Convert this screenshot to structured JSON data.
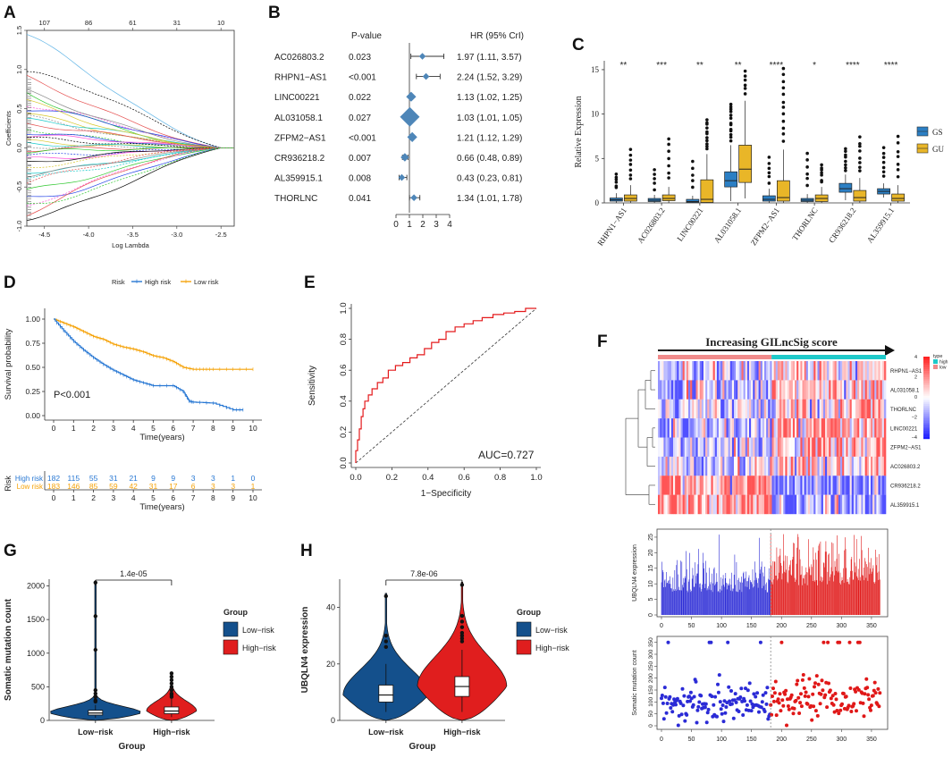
{
  "figure_label": "Multi-panel figure: GILncSig prognostic signature analysis",
  "panels": {
    "A": {
      "label": "A"
    },
    "B": {
      "label": "B"
    },
    "C": {
      "label": "C"
    },
    "D": {
      "label": "D"
    },
    "E": {
      "label": "E"
    },
    "F": {
      "label": "F"
    },
    "G": {
      "label": "G"
    },
    "H": {
      "label": "H"
    }
  },
  "chart_data": [
    {
      "id": "A",
      "type": "line",
      "xlabel": "Log Lambda",
      "ylabel": "Coefficients",
      "xlim": [
        -4.7,
        -2.35
      ],
      "ylim": [
        -1.0,
        1.5
      ],
      "x_ticks": [
        "-4.5",
        "-4.0",
        "-3.5",
        "-3.0",
        "-2.5"
      ],
      "x_tick_values": [
        -4.5,
        -4.0,
        -3.5,
        -3.0,
        -2.5
      ],
      "y_ticks": [
        "-1.0",
        "-0.5",
        "0.0",
        "0.5",
        "1.0",
        "1.5"
      ],
      "y_tick_values": [
        -1.0,
        -0.5,
        0.0,
        0.5,
        1.0,
        1.5
      ],
      "top_ticks": [
        "107",
        "86",
        "61",
        "31",
        "10"
      ],
      "top_tick_values": [
        -4.5,
        -4.0,
        -3.5,
        -3.0,
        -2.5
      ],
      "converge_x": -2.5,
      "paths": [
        {
          "color": "#5fb4e6",
          "start": 1.45
        },
        {
          "color": "#000000",
          "start": 0.95
        },
        {
          "color": "#e54b4b",
          "start": 0.9
        },
        {
          "color": "#2ec72e",
          "start": 0.7
        },
        {
          "color": "#ff4fd8",
          "start": 0.55
        },
        {
          "color": "#1f3fe6",
          "start": 0.5
        },
        {
          "color": "#d6c629",
          "start": 0.45
        },
        {
          "color": "#888888",
          "start": 0.4
        },
        {
          "color": "#18c9c9",
          "start": 0.35
        },
        {
          "color": "#e54b4b",
          "start": 0.3
        },
        {
          "color": "#2ec72e",
          "start": 0.25
        },
        {
          "color": "#1f3fe6",
          "start": 0.2
        },
        {
          "color": "#ff4fd8",
          "start": 0.15
        },
        {
          "color": "#000000",
          "start": 0.12
        },
        {
          "color": "#d6c629",
          "start": 0.08
        },
        {
          "color": "#18c9c9",
          "start": 0.05
        },
        {
          "color": "#888888",
          "start": 0.02
        },
        {
          "color": "#e54b4b",
          "start": -0.02
        },
        {
          "color": "#2ec72e",
          "start": -0.05
        },
        {
          "color": "#1f3fe6",
          "start": -0.1
        },
        {
          "color": "#ff4fd8",
          "start": -0.15
        },
        {
          "color": "#000000",
          "start": -0.2
        },
        {
          "color": "#d6c629",
          "start": -0.25
        },
        {
          "color": "#18c9c9",
          "start": -0.3
        },
        {
          "color": "#888888",
          "start": -0.35
        },
        {
          "color": "#e54b4b",
          "start": -0.45
        },
        {
          "color": "#2ec72e",
          "start": -0.55
        },
        {
          "color": "#1f3fe6",
          "start": -0.65
        },
        {
          "color": "#ff4fd8",
          "start": -0.75
        },
        {
          "color": "#e54b4b",
          "start": -0.85
        },
        {
          "color": "#000000",
          "start": -0.9
        },
        {
          "color": "#18c9c9",
          "start": -0.38
        },
        {
          "color": "#d6c629",
          "start": 0.6
        },
        {
          "color": "#888888",
          "start": 0.72
        },
        {
          "color": "#2ec72e",
          "start": -0.72
        }
      ]
    },
    {
      "id": "B",
      "type": "forest",
      "col_pvalue": "P-value",
      "col_hr": "HR (95% CrI)",
      "x_ticks": [
        "0",
        "1",
        "2",
        "3",
        "4"
      ],
      "x_tick_values": [
        0,
        1,
        2,
        3,
        4
      ],
      "reference_line": 1,
      "rows": [
        {
          "gene": "AC026803.2",
          "p": "0.023",
          "hr_text": "1.97 (1.11, 3.57)",
          "hr": 1.97,
          "lo": 1.11,
          "hi": 3.57,
          "size": 1
        },
        {
          "gene": "RHPN1−AS1",
          "p": "<0.001",
          "hr_text": "2.24 (1.52, 3.29)",
          "hr": 2.24,
          "lo": 1.52,
          "hi": 3.29,
          "size": 1
        },
        {
          "gene": "LINC00221",
          "p": "0.022",
          "hr_text": "1.13 (1.02, 1.25)",
          "hr": 1.13,
          "lo": 1.02,
          "hi": 1.25,
          "size": 2
        },
        {
          "gene": "AL031058.1",
          "p": "0.027",
          "hr_text": "1.03 (1.01, 1.05)",
          "hr": 1.03,
          "lo": 1.01,
          "hi": 1.05,
          "size": 5
        },
        {
          "gene": "ZFPM2−AS1",
          "p": "<0.001",
          "hr_text": "1.21 (1.12, 1.29)",
          "hr": 1.21,
          "lo": 1.12,
          "hi": 1.29,
          "size": 2
        },
        {
          "gene": "CR936218.2",
          "p": "0.007",
          "hr_text": "0.66 (0.48, 0.89)",
          "hr": 0.66,
          "lo": 0.48,
          "hi": 0.89,
          "size": 1.5
        },
        {
          "gene": "AL359915.1",
          "p": "0.008",
          "hr_text": "0.43 (0.23, 0.81)",
          "hr": 0.43,
          "lo": 0.23,
          "hi": 0.81,
          "size": 1
        },
        {
          "gene": "THORLNC",
          "p": "0.041",
          "hr_text": "1.34 (1.01, 1.78)",
          "hr": 1.34,
          "lo": 1.01,
          "hi": 1.78,
          "size": 1
        }
      ]
    },
    {
      "id": "C",
      "type": "box",
      "ylabel": "Relative Expression",
      "ylim": [
        0,
        16
      ],
      "y_ticks": [
        "0",
        "5",
        "10",
        "15"
      ],
      "y_tick_values": [
        0,
        5,
        10,
        15
      ],
      "legend": [
        {
          "name": "GS",
          "color": "#2b7fc4"
        },
        {
          "name": "GU",
          "color": "#e9b628"
        }
      ],
      "categories": [
        "RHPN1−AS1",
        "AC026803.2",
        "LINC00221",
        "AL031058.1",
        "ZFPM2−AS1",
        "THORLNC",
        "CR936218.2",
        "AL359915.1"
      ],
      "significance": [
        "**",
        "***",
        "**",
        "**",
        "****",
        "*",
        "****",
        "****"
      ],
      "GS": [
        [
          0,
          0.2,
          0.35,
          0.55,
          1.1
        ],
        [
          0,
          0.15,
          0.3,
          0.5,
          0.9
        ],
        [
          0,
          0.05,
          0.15,
          0.4,
          0.8
        ],
        [
          0.2,
          1.8,
          2.5,
          3.5,
          6.5
        ],
        [
          0,
          0.2,
          0.4,
          0.8,
          1.6
        ],
        [
          0,
          0.15,
          0.3,
          0.5,
          1.0
        ],
        [
          0.3,
          1.2,
          1.6,
          2.2,
          3.2
        ],
        [
          0.6,
          1.0,
          1.3,
          1.6,
          2.2
        ]
      ],
      "GU": [
        [
          0,
          0.2,
          0.5,
          0.9,
          2.0
        ],
        [
          0,
          0.25,
          0.5,
          0.9,
          1.8
        ],
        [
          0,
          0.05,
          0.4,
          2.6,
          5.5
        ],
        [
          0.5,
          2.3,
          3.8,
          6.5,
          11.5
        ],
        [
          0,
          0.2,
          0.6,
          2.5,
          6.0
        ],
        [
          0,
          0.15,
          0.5,
          0.9,
          1.8
        ],
        [
          0,
          0.2,
          0.6,
          1.4,
          2.8
        ],
        [
          0,
          0.2,
          0.5,
          1.0,
          2.0
        ]
      ]
    },
    {
      "id": "D",
      "type": "survival",
      "legend_title": "Risk",
      "legend": [
        {
          "name": "High risk",
          "color": "#2777d3"
        },
        {
          "name": "Low risk",
          "color": "#f5a30a"
        }
      ],
      "xlabel": "Time(years)",
      "ylabel": "Survival probability",
      "xlim": [
        0,
        10
      ],
      "ylim": [
        0,
        1
      ],
      "x_ticks": [
        "0",
        "1",
        "2",
        "3",
        "4",
        "5",
        "6",
        "7",
        "8",
        "9",
        "10"
      ],
      "x_tick_values": [
        0,
        1,
        2,
        3,
        4,
        5,
        6,
        7,
        8,
        9,
        10
      ],
      "y_ticks": [
        "0.00",
        "0.25",
        "0.50",
        "0.75",
        "1.00"
      ],
      "y_tick_values": [
        0,
        0.25,
        0.5,
        0.75,
        1
      ],
      "pvalue": "P<0.001",
      "curves": {
        "high": {
          "t": [
            0,
            0.5,
            1,
            1.5,
            2,
            2.5,
            3,
            3.5,
            4,
            4.5,
            5,
            6,
            6.5,
            6.8,
            7,
            8,
            9,
            9.5
          ],
          "s": [
            1,
            0.88,
            0.77,
            0.68,
            0.6,
            0.53,
            0.47,
            0.42,
            0.37,
            0.34,
            0.31,
            0.31,
            0.25,
            0.15,
            0.14,
            0.13,
            0.06,
            0.06
          ]
        },
        "low": {
          "t": [
            0,
            0.5,
            1,
            1.5,
            2,
            2.5,
            3,
            3.5,
            4,
            4.5,
            5,
            5.5,
            6,
            6.5,
            7,
            7.5,
            8,
            9,
            10
          ],
          "s": [
            1,
            0.96,
            0.92,
            0.87,
            0.82,
            0.79,
            0.74,
            0.71,
            0.69,
            0.66,
            0.62,
            0.6,
            0.56,
            0.5,
            0.48,
            0.48,
            0.48,
            0.48,
            0.48
          ]
        }
      },
      "risk_table": {
        "label": "Risk",
        "xlabel": "Time(years)",
        "rows": [
          {
            "name": "High risk",
            "color": "#2777d3",
            "counts": [
              "182",
              "115",
              "55",
              "31",
              "21",
              "9",
              "9",
              "3",
              "3",
              "1",
              "0"
            ]
          },
          {
            "name": "Low risk",
            "color": "#f5a30a",
            "counts": [
              "183",
              "146",
              "85",
              "59",
              "42",
              "31",
              "17",
              "6",
              "3",
              "3",
              "1"
            ]
          }
        ]
      }
    },
    {
      "id": "E",
      "type": "line",
      "xlabel": "1−Specificity",
      "ylabel": "Sensitivity",
      "xlim": [
        0,
        1
      ],
      "ylim": [
        0,
        1
      ],
      "x_ticks": [
        "0.0",
        "0.2",
        "0.4",
        "0.6",
        "0.8",
        "1.0"
      ],
      "x_tick_values": [
        0,
        0.2,
        0.4,
        0.6,
        0.8,
        1
      ],
      "y_ticks": [
        "0.0",
        "0.2",
        "0.4",
        "0.6",
        "0.8",
        "1.0"
      ],
      "y_tick_values": [
        0,
        0.2,
        0.4,
        0.6,
        0.8,
        1
      ],
      "auc": "AUC=0.727",
      "roc": {
        "x": [
          0,
          0.01,
          0.02,
          0.03,
          0.04,
          0.05,
          0.07,
          0.09,
          0.12,
          0.15,
          0.18,
          0.22,
          0.26,
          0.3,
          0.34,
          0.38,
          0.42,
          0.46,
          0.5,
          0.55,
          0.6,
          0.65,
          0.7,
          0.76,
          0.82,
          0.88,
          0.94,
          1
        ],
        "y": [
          0,
          0.08,
          0.15,
          0.22,
          0.3,
          0.35,
          0.4,
          0.44,
          0.48,
          0.52,
          0.55,
          0.6,
          0.63,
          0.65,
          0.68,
          0.7,
          0.74,
          0.78,
          0.8,
          0.85,
          0.88,
          0.9,
          0.92,
          0.94,
          0.96,
          0.97,
          0.98,
          1
        ]
      }
    },
    {
      "id": "F_heatmap",
      "type": "heatmap",
      "title": "Increasing GILncSig score",
      "rows": [
        "RHPN1−AS1",
        "AL031058.1",
        "THORLNC",
        "LINC00221",
        "ZFPM2−AS1",
        "AC026803.2",
        "CR936218.2",
        "AL359915.1"
      ],
      "legend_type": "type",
      "legend": [
        {
          "name": "high",
          "color": "#1ec9c9"
        },
        {
          "name": "low",
          "color": "#f08a8a"
        }
      ],
      "scale_ticks": [
        "4",
        "2",
        "0",
        "−2",
        "−4"
      ],
      "scale_values": [
        4,
        2,
        0,
        -2,
        -4
      ],
      "n_samples": 365,
      "n_low": 182
    },
    {
      "id": "F_bar",
      "type": "bar",
      "ylabel": "UBQLN4 expression",
      "xlim": [
        0,
        365
      ],
      "ylim": [
        0,
        27
      ],
      "x_ticks": [
        "0",
        "50",
        "100",
        "150",
        "200",
        "250",
        "300",
        "350"
      ],
      "x_tick_values": [
        0,
        50,
        100,
        150,
        200,
        250,
        300,
        350
      ],
      "y_ticks": [
        "0",
        "5",
        "10",
        "15",
        "20",
        "25"
      ],
      "y_tick_values": [
        0,
        5,
        10,
        15,
        20,
        25
      ],
      "split": 182,
      "low_color": "#2b2bd6",
      "high_color": "#e01818"
    },
    {
      "id": "F_scatter",
      "type": "scatter",
      "ylabel": "Somatic mutation count",
      "xlim": [
        0,
        365
      ],
      "ylim": [
        0,
        360
      ],
      "x_ticks": [
        "0",
        "50",
        "100",
        "150",
        "200",
        "250",
        "300",
        "350"
      ],
      "x_tick_values": [
        0,
        50,
        100,
        150,
        200,
        250,
        300,
        350
      ],
      "y_ticks": [
        "0",
        "50",
        "100",
        "150",
        "200",
        "250",
        "300",
        "350"
      ],
      "y_tick_values": [
        0,
        50,
        100,
        150,
        200,
        250,
        300,
        350
      ],
      "split": 182,
      "low_color": "#2b2bd6",
      "high_color": "#e01818"
    },
    {
      "id": "G",
      "type": "violin",
      "xlabel": "Group",
      "ylabel": "Somatic mutation count",
      "ylim": [
        0,
        2100
      ],
      "y_ticks": [
        "0",
        "500",
        "1000",
        "1500",
        "2000"
      ],
      "y_tick_values": [
        0,
        500,
        1000,
        1500,
        2000
      ],
      "categories": [
        "Low−risk",
        "High−risk"
      ],
      "pvalue": "1.4e-05",
      "legend_title": "Group",
      "legend": [
        {
          "name": "Low−risk",
          "color": "#14508c"
        },
        {
          "name": "High−risk",
          "color": "#e01e1e"
        }
      ],
      "box": [
        [
          40,
          80,
          110,
          150,
          230
        ],
        [
          50,
          100,
          140,
          200,
          320
        ]
      ],
      "outliers": [
        [
          1550,
          1050,
          2050,
          450,
          400,
          350,
          300,
          280
        ],
        [
          700,
          650,
          600,
          550,
          500,
          450,
          400,
          380,
          350
        ]
      ],
      "violin_max": [
        2050,
        720
      ]
    },
    {
      "id": "H",
      "type": "violin",
      "xlabel": "Group",
      "ylabel": "UBQLN4 expression",
      "ylim": [
        0,
        50
      ],
      "y_ticks": [
        "0",
        "20",
        "40"
      ],
      "y_tick_values": [
        0,
        20,
        40
      ],
      "categories": [
        "Low−risk",
        "High−risk"
      ],
      "pvalue": "7.8e-06",
      "legend_title": "Group",
      "legend": [
        {
          "name": "Low−risk",
          "color": "#14508c"
        },
        {
          "name": "High−risk",
          "color": "#e01e1e"
        }
      ],
      "box": [
        [
          3,
          6.5,
          9,
          12.5,
          20
        ],
        [
          3,
          8.5,
          12,
          15.5,
          25
        ]
      ],
      "outliers": [
        [
          44,
          30,
          28,
          26
        ],
        [
          48,
          37,
          35,
          33,
          31,
          30,
          29,
          28
        ]
      ],
      "violin_max": [
        45,
        49
      ]
    }
  ]
}
